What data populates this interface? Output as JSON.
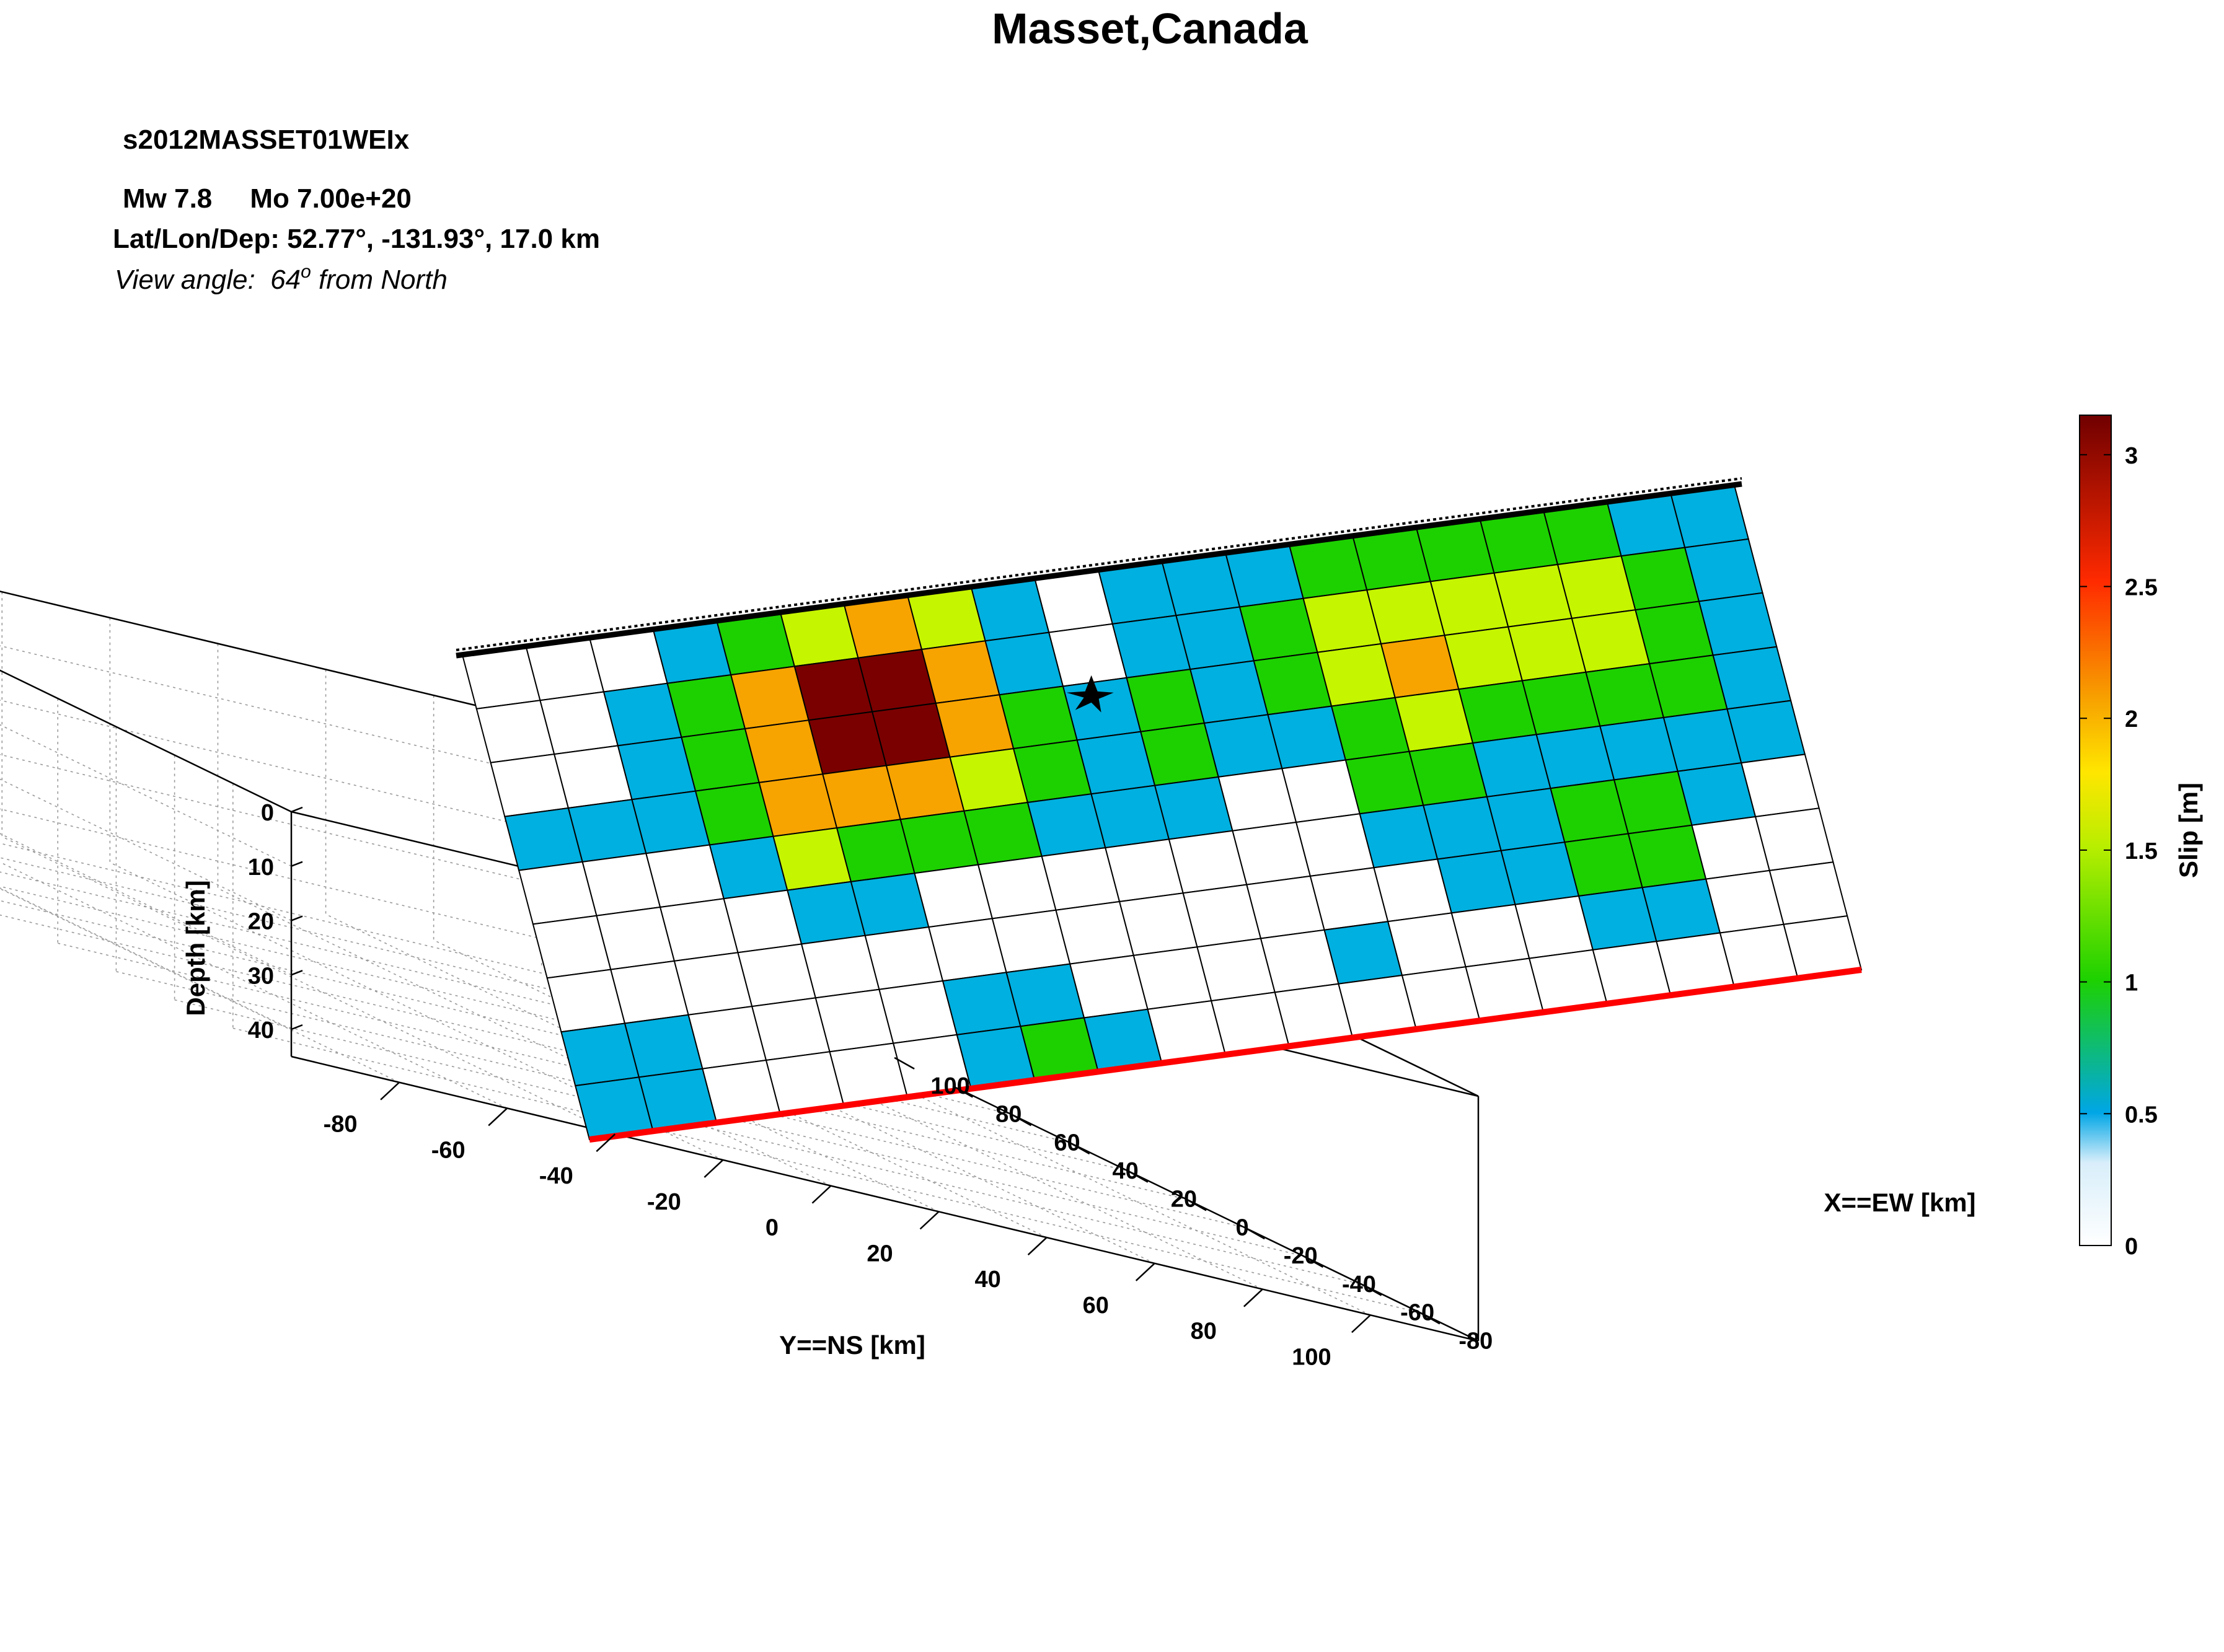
{
  "chart_data": {
    "type": "heatmap",
    "title": "Masset,Canada",
    "subtitle": "s2012MASSET01WEIx",
    "info_line1": "Mw 7.8     Mo 7.00e+20",
    "info_line2": "Lat/Lon/Dep: 52.77°, -131.93°, 17.0 km",
    "view_angle_label": "View angle:  64",
    "view_angle_sup": "o",
    "view_angle_tail": " from North",
    "xlabel": "Y==NS [km]",
    "ylabel": "X==EW [km]",
    "zlabel": "Depth [km]",
    "ns_ticks": [
      "-80",
      "-60",
      "-40",
      "-20",
      "0",
      "20",
      "40",
      "60",
      "80",
      "100"
    ],
    "ew_ticks": [
      "-80",
      "-60",
      "-40",
      "-20",
      "0",
      "20",
      "40",
      "60",
      "80",
      "100"
    ],
    "depth_ticks": [
      "0",
      "10",
      "20",
      "30",
      "40"
    ],
    "ns_range": [
      -100,
      120
    ],
    "ew_range": [
      -100,
      110
    ],
    "depth_range": [
      0,
      45
    ],
    "colorbar": {
      "label": "Slip [m]",
      "range": [
        0,
        3.15
      ],
      "ticks": [
        "0",
        "0.5",
        "1",
        "1.5",
        "2",
        "2.5",
        "3"
      ],
      "colors": [
        "#ffffff",
        "#00b0e0",
        "#1dd100",
        "#cdf700",
        "#f7a400",
        "#ff2000",
        "#7a0000"
      ]
    },
    "grid": true,
    "hypocenter_marker": "star",
    "fault_top_line_color": "#000000",
    "fault_bottom_line_color": "#ff0000",
    "subfault_columns": 20,
    "subfault_rows": 9,
    "slip_m": [
      [
        0,
        0,
        0,
        0.45,
        1.0,
        1.55,
        2.05,
        1.55,
        0.45,
        0,
        0.45,
        0.45,
        0.45,
        1.0,
        1.0,
        1.0,
        1.0,
        1.0,
        0.45,
        0.45
      ],
      [
        0,
        0,
        0.45,
        1.0,
        2.05,
        3.1,
        3.1,
        2.05,
        0.45,
        0,
        0.45,
        0.45,
        1.0,
        1.55,
        1.55,
        1.55,
        1.55,
        1.55,
        1.0,
        0.45
      ],
      [
        0,
        0,
        0.45,
        1.0,
        2.05,
        3.1,
        3.1,
        2.05,
        1.0,
        0.45,
        1.0,
        0.45,
        1.0,
        1.55,
        2.05,
        1.55,
        1.55,
        1.55,
        1.0,
        0.45
      ],
      [
        0.45,
        0.45,
        0.45,
        1.0,
        2.05,
        2.05,
        2.05,
        1.55,
        1.0,
        0.45,
        1.0,
        0.45,
        0.45,
        1.0,
        1.55,
        1.0,
        1.0,
        1.0,
        1.0,
        0.45
      ],
      [
        0,
        0,
        0,
        0.45,
        1.55,
        1.0,
        1.0,
        1.0,
        0.45,
        0.45,
        0.45,
        0,
        0,
        1.0,
        1.0,
        0.45,
        0.45,
        0.45,
        0.45,
        0.45
      ],
      [
        0,
        0,
        0,
        0,
        0.45,
        0.45,
        0,
        0,
        0,
        0,
        0,
        0,
        0,
        0.45,
        0.45,
        0.45,
        1.0,
        1.0,
        0.45,
        0
      ],
      [
        0,
        0,
        0,
        0,
        0,
        0,
        0,
        0,
        0,
        0,
        0,
        0,
        0,
        0,
        0.45,
        0.45,
        1.0,
        1.0,
        0,
        0
      ],
      [
        0.45,
        0.45,
        0,
        0,
        0,
        0,
        0.45,
        0.45,
        0,
        0,
        0,
        0,
        0.45,
        0,
        0,
        0,
        0.45,
        0.45,
        0,
        0
      ],
      [
        0.45,
        0.45,
        0,
        0,
        0,
        0,
        0.45,
        1.0,
        0.45,
        0,
        0,
        0,
        0,
        0,
        0,
        0,
        0,
        0,
        0,
        0
      ]
    ]
  }
}
